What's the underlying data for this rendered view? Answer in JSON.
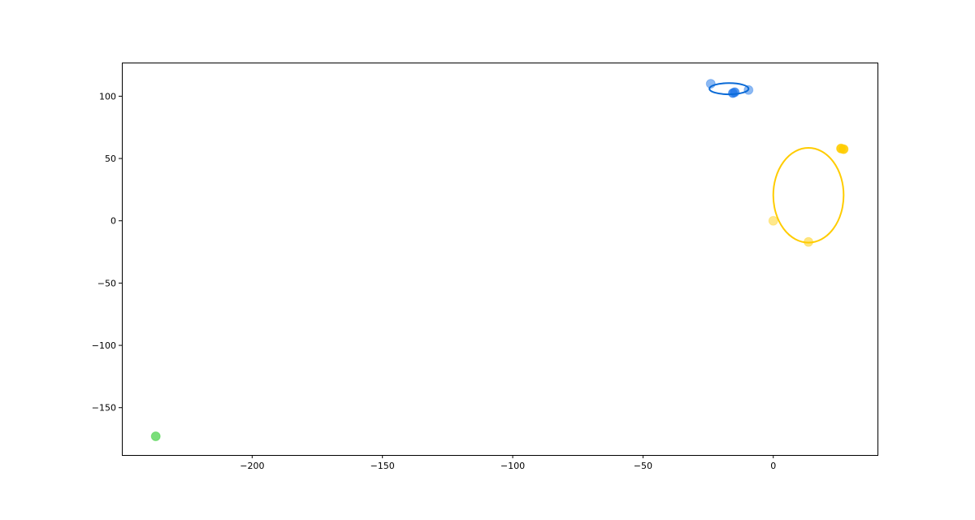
{
  "chart_data": {
    "type": "scatter",
    "title": "",
    "xlabel": "",
    "ylabel": "",
    "xlim": [
      -250,
      40
    ],
    "ylim": [
      -188,
      127
    ],
    "grid": false,
    "legend": "none",
    "x_ticks": [
      -200,
      -150,
      -100,
      -50,
      0
    ],
    "x_tick_labels": [
      "−200",
      "−150",
      "−100",
      "−50",
      "0"
    ],
    "y_ticks": [
      -150,
      -100,
      -50,
      0,
      50,
      100
    ],
    "y_tick_labels": [
      "−150",
      "−100",
      "−50",
      "0",
      "50",
      "100"
    ],
    "series": [
      {
        "color": "#1a73e8",
        "points": [
          {
            "x": -24,
            "y": 110,
            "alpha": 0.5
          },
          {
            "x": -9.5,
            "y": 105,
            "alpha": 0.5
          },
          {
            "x": -15.5,
            "y": 102.5,
            "alpha": 0.75
          },
          {
            "x": -14.8,
            "y": 103.2,
            "alpha": 0.75
          }
        ],
        "ellipse": {
          "cx": -17,
          "cy": 106,
          "rx": 7.5,
          "ry": 4.5,
          "stroke": "#0a6ad6"
        }
      },
      {
        "color": "#ffcc00",
        "points": [
          {
            "x": 0,
            "y": 0,
            "alpha": 0.45
          },
          {
            "x": 13.5,
            "y": -17,
            "alpha": 0.5
          },
          {
            "x": 26,
            "y": 58,
            "alpha": 0.9
          },
          {
            "x": 27,
            "y": 57.5,
            "alpha": 0.9
          }
        ],
        "ellipse": {
          "cx": 13.5,
          "cy": 20.5,
          "rx": 13.5,
          "ry": 38,
          "stroke": "#ffcc00"
        }
      },
      {
        "color": "#33cc33",
        "points": [
          {
            "x": -237,
            "y": -173,
            "alpha": 0.65
          }
        ]
      }
    ]
  }
}
